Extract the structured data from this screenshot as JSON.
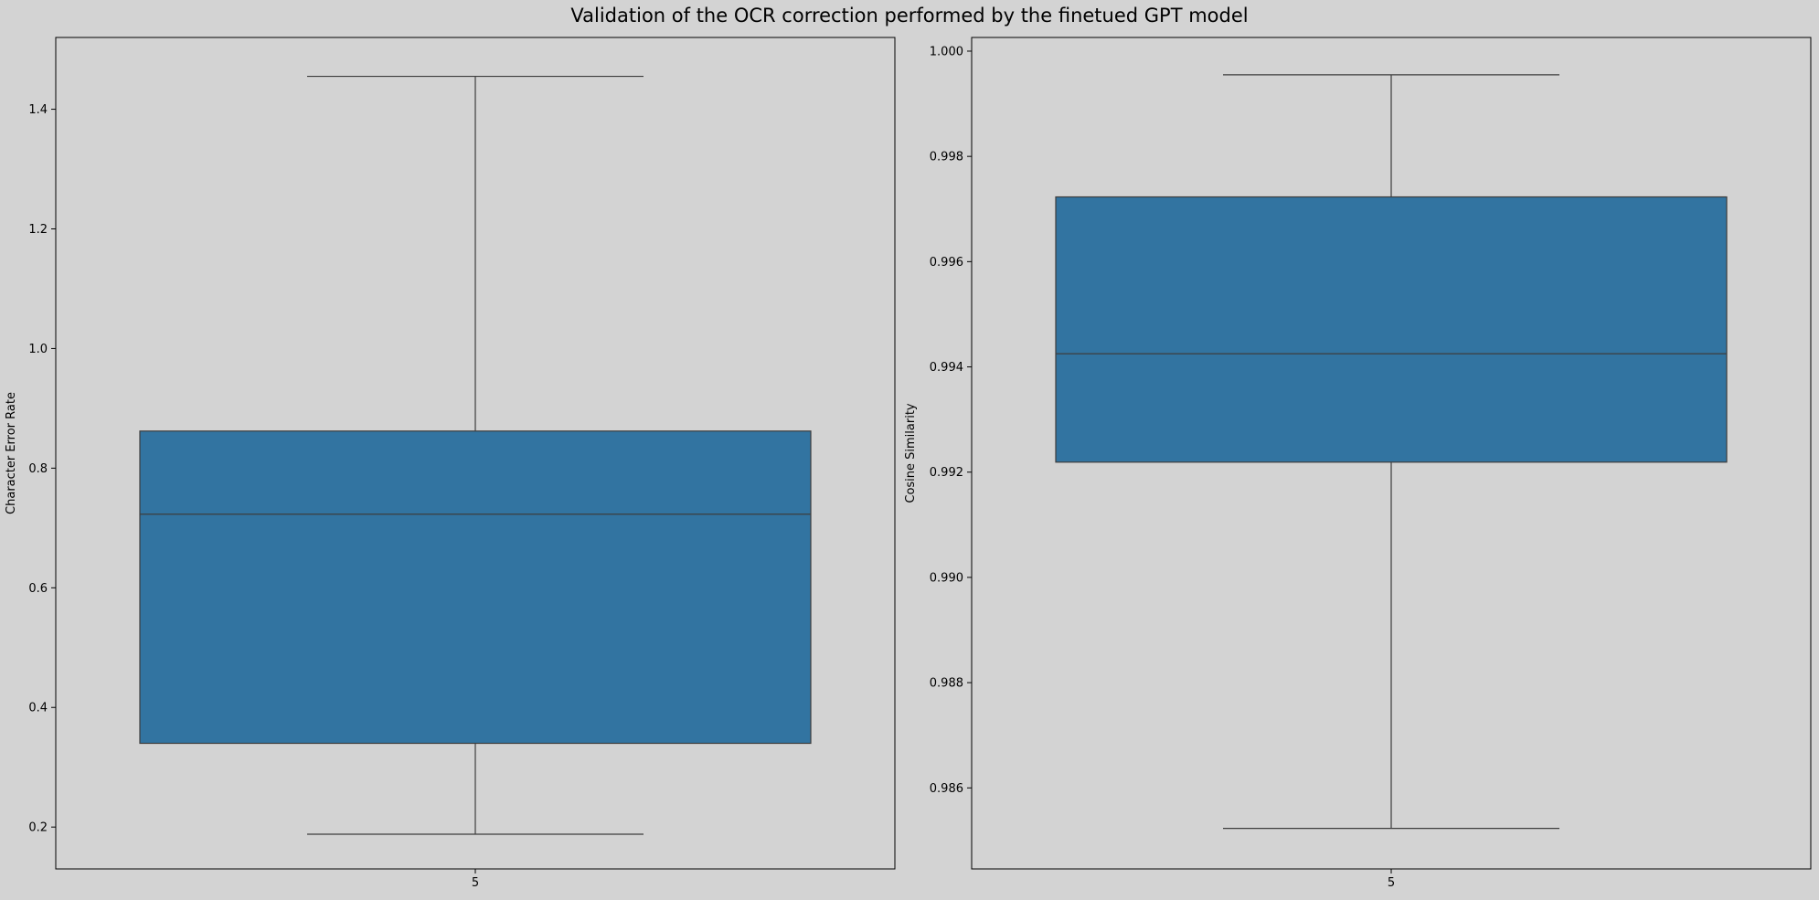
{
  "figure": {
    "title": "Validation of the OCR correction performed by the finetued GPT model",
    "background": "#d3d3d3"
  },
  "colors": {
    "box_fill": "#3274a1",
    "line": "#3d3d3d",
    "axes_edge": "#000000"
  },
  "chart_data": [
    {
      "type": "box",
      "categories": [
        "5"
      ],
      "ylabel": "Character Error Rate",
      "xlabel": "",
      "ylim": [
        0.13,
        1.52
      ],
      "yticks": [
        0.2,
        0.4,
        0.6,
        0.8,
        1.0,
        1.2,
        1.4
      ],
      "ytick_labels": [
        "0.2",
        "0.4",
        "0.6",
        "0.8",
        "1.0",
        "1.2",
        "1.4"
      ],
      "boxes": [
        {
          "category": "5",
          "whisker_low": 0.188,
          "q1": 0.34,
          "median": 0.723,
          "q3": 0.862,
          "whisker_high": 1.455
        }
      ]
    },
    {
      "type": "box",
      "categories": [
        "5"
      ],
      "ylabel": "Cosine Similarity",
      "xlabel": "",
      "ylim": [
        0.98446,
        1.00026
      ],
      "yticks": [
        0.986,
        0.988,
        0.99,
        0.992,
        0.994,
        0.996,
        0.998,
        1.0
      ],
      "ytick_labels": [
        "0.986",
        "0.988",
        "0.990",
        "0.992",
        "0.994",
        "0.996",
        "0.998",
        "1.000"
      ],
      "boxes": [
        {
          "category": "5",
          "whisker_low": 0.98523,
          "q1": 0.99219,
          "median": 0.99425,
          "q3": 0.99723,
          "whisker_high": 0.99955
        }
      ]
    }
  ]
}
